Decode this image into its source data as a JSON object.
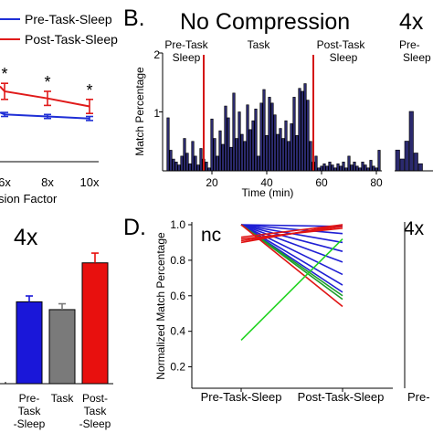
{
  "panel_letters": {
    "b": "B.",
    "d": "D."
  },
  "chart_data": [
    {
      "panel": "A",
      "type": "line",
      "series": [
        {
          "name": "Pre-Task-Sleep",
          "color": "#1f2fd6",
          "values": [
            0.47,
            0.45,
            0.43
          ]
        },
        {
          "name": "Post-Task-Sleep",
          "color": "#e01a1a",
          "values": [
            0.7,
            0.63,
            0.55
          ]
        }
      ],
      "error": {
        "pre": [
          0.02,
          0.02,
          0.02
        ],
        "post": [
          0.08,
          0.07,
          0.07
        ]
      },
      "x": [
        "6x",
        "8x",
        "10x"
      ],
      "xlabel_partial": "sion Factor",
      "significance_marks": [
        "*",
        "*",
        "*"
      ]
    },
    {
      "panel": "B",
      "type": "bar",
      "title": "No Compression",
      "ylabel": "Match Percentage",
      "xlabel": "Time (min)",
      "ylim": [
        0,
        2
      ],
      "yticks": [
        "1",
        "2"
      ],
      "xticks": [
        "20",
        "40",
        "60",
        "80"
      ],
      "xticks_values": [
        20,
        40,
        60,
        80
      ],
      "xlim": [
        2,
        82
      ],
      "bar_color": "#2b2a6e",
      "boundary_color": "#d41414",
      "boundaries": [
        17,
        57
      ],
      "epoch_labels": [
        {
          "lines": [
            "Pre-Task",
            "Sleep"
          ],
          "at": 9
        },
        {
          "lines": [
            "Task"
          ],
          "at": 37
        },
        {
          "lines": [
            "Post-Task",
            "Sleep"
          ],
          "at": 68
        }
      ],
      "x": [
        4,
        5,
        6,
        7,
        8,
        9,
        10,
        11,
        12,
        13,
        14,
        15,
        16,
        17,
        18,
        19,
        20,
        21,
        22,
        23,
        24,
        25,
        26,
        27,
        28,
        29,
        30,
        31,
        32,
        33,
        34,
        35,
        36,
        37,
        38,
        39,
        40,
        41,
        42,
        43,
        44,
        45,
        46,
        47,
        48,
        49,
        50,
        51,
        52,
        53,
        54,
        55,
        56,
        57,
        58,
        59,
        60,
        61,
        62,
        63,
        64,
        65,
        66,
        67,
        68,
        69,
        70,
        71,
        72,
        73,
        74,
        75,
        76,
        77,
        78,
        79,
        80,
        81
      ],
      "values": [
        0.9,
        0.35,
        0.2,
        0.15,
        0.1,
        0.25,
        0.55,
        0.3,
        0.12,
        0.5,
        0.25,
        0.1,
        0.38,
        0.2,
        0.15,
        0.05,
        0.88,
        0.55,
        0.25,
        0.68,
        0.45,
        1.1,
        0.9,
        0.4,
        1.32,
        0.55,
        1.0,
        0.62,
        0.5,
        1.12,
        0.7,
        0.85,
        1.05,
        0.25,
        1.15,
        1.38,
        0.6,
        1.25,
        1.15,
        0.95,
        0.62,
        0.72,
        0.55,
        0.85,
        0.5,
        0.8,
        1.25,
        0.6,
        1.4,
        1.35,
        1.48,
        1.2,
        0.5,
        0.15,
        0.25,
        0.05,
        0.08,
        0.12,
        0.08,
        0.15,
        0.1,
        0.05,
        0.12,
        0.08,
        0.15,
        0.05,
        0.25,
        0.1,
        0.15,
        0.08,
        0.05,
        0.15,
        0.1,
        0.05,
        0.18,
        0.08,
        0.05,
        0.35
      ]
    },
    {
      "panel": "B-4x-partial",
      "type": "bar",
      "title": "4x",
      "epoch_label_partial": [
        "Pre-",
        "Sleep"
      ],
      "values": [
        0.35,
        0.2,
        0.5,
        1.0,
        0.3,
        0.12
      ]
    },
    {
      "panel": "C",
      "type": "bar",
      "title": "4x",
      "categories": [
        [
          "Pre-",
          "Task",
          "-Sleep"
        ],
        [
          "Task"
        ],
        [
          "Post-",
          "Task",
          "-Sleep"
        ]
      ],
      "values": [
        0.42,
        0.38,
        0.62
      ],
      "errors": [
        0.03,
        0.03,
        0.05
      ],
      "colors": [
        "#1a17d9",
        "#7a7a7a",
        "#e8100e"
      ],
      "ylim": [
        0,
        0.75
      ]
    },
    {
      "panel": "D",
      "type": "line",
      "title": "nc",
      "ylabel": "Normalized Match Percentage",
      "categories": [
        "Pre-Task-Sleep",
        "Post-Task-Sleep"
      ],
      "ylim": [
        0.1,
        1.0
      ],
      "yticks": [
        "0.2",
        "0.4",
        "0.6",
        "0.8",
        "1.0"
      ],
      "ytick_values": [
        0.2,
        0.4,
        0.6,
        0.8,
        1.0
      ],
      "series": [
        {
          "color": "#1f1fd4",
          "values": [
            1.0,
            0.99
          ]
        },
        {
          "color": "#1f1fd4",
          "values": [
            1.0,
            0.95
          ]
        },
        {
          "color": "#1f1fd4",
          "values": [
            1.0,
            0.9
          ]
        },
        {
          "color": "#1f1fd4",
          "values": [
            1.0,
            0.85
          ]
        },
        {
          "color": "#1f1fd4",
          "values": [
            1.0,
            0.79
          ]
        },
        {
          "color": "#1f1fd4",
          "values": [
            1.0,
            0.72
          ]
        },
        {
          "color": "#1f1fd4",
          "values": [
            1.0,
            0.66
          ]
        },
        {
          "color": "#1f1fd4",
          "values": [
            1.0,
            0.62
          ]
        },
        {
          "color": "#1c9e2a",
          "values": [
            1.0,
            0.6
          ]
        },
        {
          "color": "#1c9e2a",
          "values": [
            1.0,
            0.58
          ]
        },
        {
          "color": "#e01414",
          "values": [
            1.0,
            0.54
          ]
        },
        {
          "color": "#e01414",
          "values": [
            0.9,
            1.0
          ]
        },
        {
          "color": "#e01414",
          "values": [
            0.91,
            0.99
          ]
        },
        {
          "color": "#e01414",
          "values": [
            0.92,
            0.98
          ]
        },
        {
          "color": "#e01414",
          "values": [
            0.93,
            1.0
          ]
        },
        {
          "color": "#22d422",
          "values": [
            0.35,
            0.92
          ]
        }
      ]
    },
    {
      "panel": "D-4x-partial",
      "type": "line",
      "title": "4x",
      "category_partial": "Pre-"
    }
  ]
}
